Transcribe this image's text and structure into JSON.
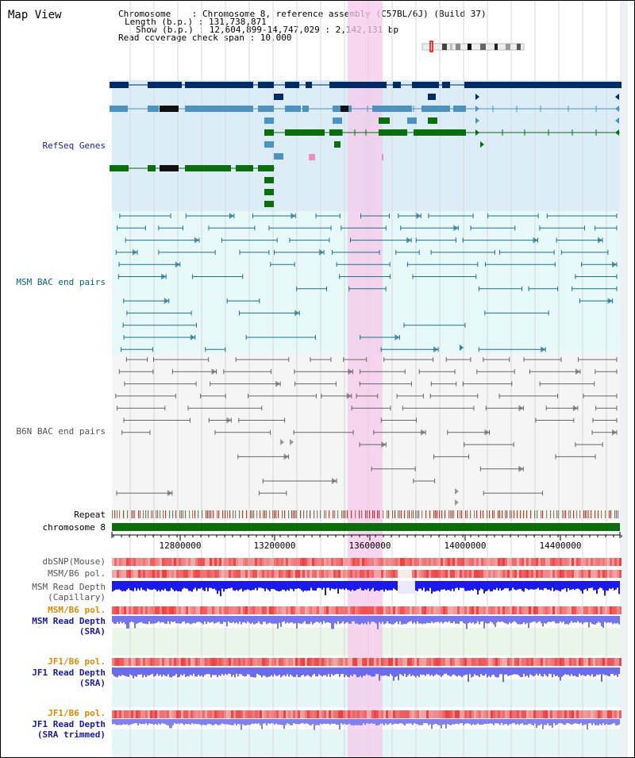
{
  "view": {
    "title": "Map View",
    "info": {
      "chromosome": "Chromosome    : Chromosome 8, reference assembly (C57BL/6J) (Build 37)",
      "length": "Length (b.p.) : 131,738,871",
      "show": "Show (b.p.) : 12,604,899-14,747,029 : 2,142,131 bp",
      "coverage": "Read coverage check span : 10,000"
    }
  },
  "tracks": {
    "refseq": "RefSeq Genes",
    "msm_bac": "MSM BAC end pairs",
    "b6n_bac": "B6N BAC end pairs",
    "repeat": "Repeat",
    "chromosome": "chromosome 8",
    "dbsnp": "dbSNP(Mouse)",
    "msm_b6_pol_1": "MSM/B6 pol.",
    "msm_depth_cap_1": "MSM Read Depth",
    "msm_depth_cap_2": "(Capillary)",
    "msm_b6_pol_2": "MSM/B6 pol.",
    "msm_depth_sra_1": "MSM Read Depth",
    "msm_depth_sra_2": "(SRA)",
    "jf1_b6_pol_1": "JF1/B6 pol.",
    "jf1_depth_sra_1": "JF1 Read Depth",
    "jf1_depth_sra_2": "(SRA)",
    "jf1_b6_pol_2": "JF1/B6 pol.",
    "jf1_depth_trim_1": "JF1 Read Depth",
    "jf1_depth_trim_2": "(SRA trimmed)"
  },
  "axis": {
    "ticks": [
      "12800000",
      "13200000",
      "13600000",
      "14000000",
      "14400000"
    ]
  },
  "colors": {
    "dark_gene": "#002b6b",
    "mid_gene": "#4a93c2",
    "green_gene": "#0a6e0a",
    "refseq_bg": "#dcedf7",
    "msm_bg": "#e6f8f8",
    "b6n_bg": "#f5f5f5",
    "highlight": "#f6c8ea",
    "msm_label": "#006680",
    "refseq_label": "#1a1aa8",
    "b6n_label": "#555555",
    "orange_label": "#e08a00",
    "blue_label": "#1a1aa8"
  }
}
